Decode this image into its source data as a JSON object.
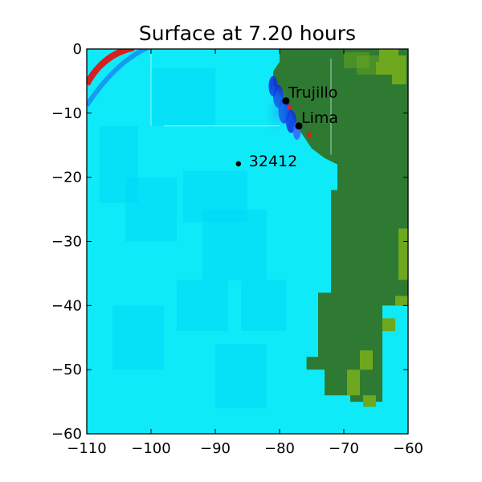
{
  "chart_data": {
    "type": "heatmap",
    "title": "Surface at 7.20 hours",
    "xlabel": "",
    "ylabel": "",
    "xlim": [
      -110,
      -60
    ],
    "ylim": [
      -60,
      0
    ],
    "xticks": [
      -110,
      -100,
      -90,
      -80,
      -70,
      -60
    ],
    "yticks": [
      0,
      -10,
      -20,
      -30,
      -40,
      -50,
      -60
    ],
    "xtick_labels": [
      "−110",
      "−100",
      "−90",
      "−80",
      "−70",
      "−60"
    ],
    "ytick_labels": [
      "0",
      "−10",
      "−20",
      "−30",
      "−40",
      "−50",
      "−60"
    ],
    "grid": false,
    "colors": {
      "ocean": "#0feaf8",
      "ocean_deep": "#00d8f5",
      "land": "#2e7a32",
      "land_high": "#6ea81e",
      "wave_crest": "#d62020",
      "wave_trough": "#1030e0"
    },
    "locations": [
      {
        "name": "Trujillo",
        "x": -79.0,
        "y": -8.1
      },
      {
        "name": "Lima",
        "x": -77.0,
        "y": -12.0
      },
      {
        "name": "32412",
        "x": -86.4,
        "y": -17.9
      }
    ]
  }
}
